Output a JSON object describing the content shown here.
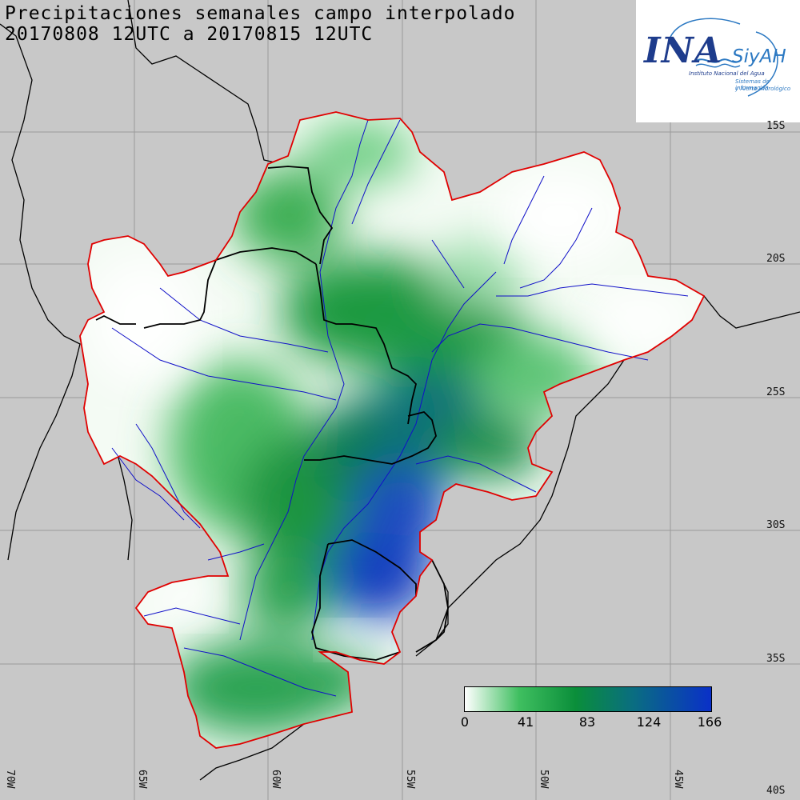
{
  "title_line1": "Precipitaciones semanales campo interpolado",
  "title_line2": "20170808 12UTC a 20170815 12UTC",
  "logo": {
    "ina": "INA",
    "siyah": "SiyAH",
    "sub_institute": "Instituto Nacional del Agua",
    "sub_system_1": "Sistemas de información",
    "sub_system_2": "y Alerta Hidrológico"
  },
  "lat_labels": [
    "15S",
    "20S",
    "25S",
    "30S",
    "35S",
    "40S"
  ],
  "lon_labels": [
    "70W",
    "65W",
    "60W",
    "55W",
    "50W",
    "45W"
  ],
  "colorbar": {
    "ticks": [
      "0",
      "41",
      "83",
      "124",
      "166"
    ],
    "min": 0,
    "max": 166
  },
  "colors": {
    "background": "#c8c8c8",
    "basin_outline": "#e00000",
    "rivers": "#1010c8",
    "borders": "#000000",
    "low": "#ffffff",
    "mid": "#2eaa50",
    "high": "#0a30c8"
  }
}
